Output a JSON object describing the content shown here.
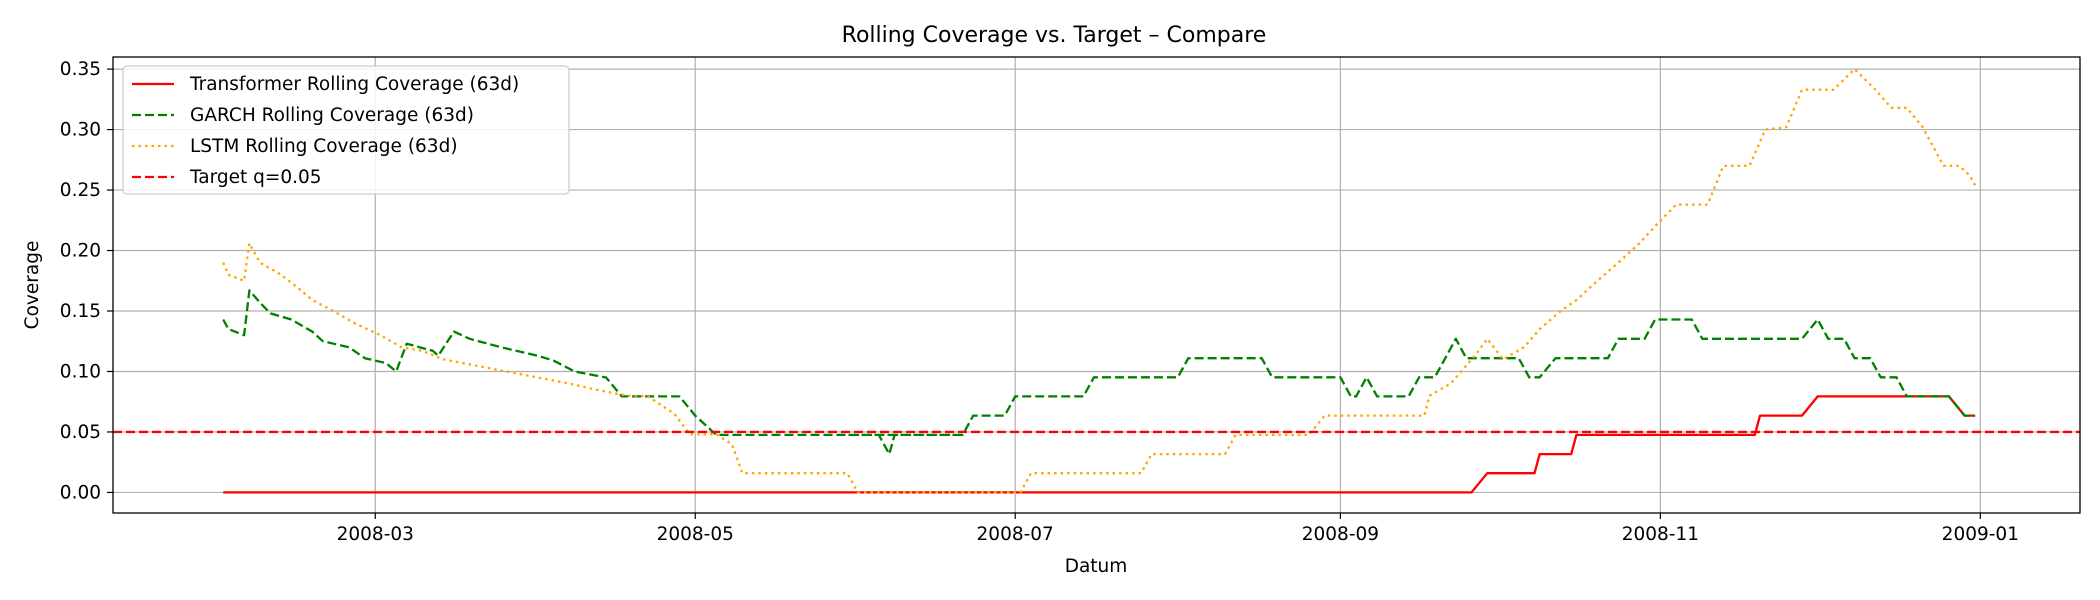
{
  "chart_data": {
    "type": "line",
    "title": "Rolling Coverage vs. Target – Compare",
    "xlabel": "Datum",
    "ylabel": "Coverage",
    "xlim": [
      "2008-01-11",
      "2009-01-20"
    ],
    "ylim": [
      -0.017,
      0.36
    ],
    "grid": true,
    "legend_position": "top-left",
    "x_ticks": [
      "2008-03",
      "2008-05",
      "2008-07",
      "2008-09",
      "2008-11",
      "2009-01"
    ],
    "x_tick_dates": [
      "2008-03-01",
      "2008-05-01",
      "2008-07-01",
      "2008-09-01",
      "2008-11-01",
      "2009-01-01"
    ],
    "y_ticks": [
      "0.00",
      "0.05",
      "0.10",
      "0.15",
      "0.20",
      "0.25",
      "0.30",
      "0.35"
    ],
    "y_tick_values": [
      0,
      0.05,
      0.1,
      0.15,
      0.2,
      0.25,
      0.3,
      0.35
    ],
    "target": {
      "name": "Target q=0.05",
      "value": 0.05,
      "color": "#ff0000",
      "style": "dashed"
    },
    "series": [
      {
        "name": "Transformer Rolling Coverage (63d)",
        "color": "#ff0000",
        "style": "solid",
        "points": [
          [
            "2008-02-01",
            0.0
          ],
          [
            "2008-09-26",
            0.0
          ],
          [
            "2008-09-29",
            0.0159
          ],
          [
            "2008-10-08",
            0.0159
          ],
          [
            "2008-10-09",
            0.0317
          ],
          [
            "2008-10-15",
            0.0317
          ],
          [
            "2008-10-16",
            0.0476
          ],
          [
            "2008-11-19",
            0.0476
          ],
          [
            "2008-11-20",
            0.0635
          ],
          [
            "2008-11-28",
            0.0635
          ],
          [
            "2008-12-01",
            0.0794
          ],
          [
            "2008-12-26",
            0.0794
          ],
          [
            "2008-12-29",
            0.0635
          ],
          [
            "2008-12-31",
            0.0635
          ]
        ]
      },
      {
        "name": "GARCH Rolling Coverage (63d)",
        "color": "#008000",
        "style": "dashed",
        "points": [
          [
            "2008-02-01",
            0.143
          ],
          [
            "2008-02-02",
            0.135
          ],
          [
            "2008-02-05",
            0.13
          ],
          [
            "2008-02-06",
            0.167
          ],
          [
            "2008-02-08",
            0.157
          ],
          [
            "2008-02-10",
            0.148
          ],
          [
            "2008-02-14",
            0.143
          ],
          [
            "2008-02-18",
            0.133
          ],
          [
            "2008-02-20",
            0.125
          ],
          [
            "2008-02-25",
            0.12
          ],
          [
            "2008-02-28",
            0.111
          ],
          [
            "2008-03-03",
            0.107
          ],
          [
            "2008-03-05",
            0.1
          ],
          [
            "2008-03-07",
            0.123
          ],
          [
            "2008-03-12",
            0.117
          ],
          [
            "2008-03-13",
            0.113
          ],
          [
            "2008-03-16",
            0.133
          ],
          [
            "2008-03-19",
            0.127
          ],
          [
            "2008-03-25",
            0.12
          ],
          [
            "2008-04-01",
            0.113
          ],
          [
            "2008-04-04",
            0.109
          ],
          [
            "2008-04-08",
            0.1
          ],
          [
            "2008-04-14",
            0.095
          ],
          [
            "2008-04-17",
            0.0794
          ],
          [
            "2008-04-28",
            0.0794
          ],
          [
            "2008-05-01",
            0.0635
          ],
          [
            "2008-05-05",
            0.0476
          ],
          [
            "2008-05-12",
            0.0476
          ],
          [
            "2008-05-16",
            0.0476
          ],
          [
            "2008-05-26",
            0.0476
          ],
          [
            "2008-05-28",
            0.0476
          ],
          [
            "2008-06-02",
            0.0476
          ],
          [
            "2008-06-05",
            0.0476
          ],
          [
            "2008-06-20",
            0.0476
          ],
          [
            "2008-05-30",
            0.0476
          ],
          [
            "2008-06-05",
            0.0476
          ],
          [
            "2008-06-07",
            0.0317
          ],
          [
            "2008-06-08",
            0.0476
          ],
          [
            "2008-06-21",
            0.0476
          ],
          [
            "2008-06-23",
            0.0635
          ],
          [
            "2008-06-29",
            0.0635
          ],
          [
            "2008-07-01",
            0.0794
          ],
          [
            "2008-07-14",
            0.0794
          ],
          [
            "2008-07-16",
            0.0952
          ],
          [
            "2008-08-01",
            0.0952
          ],
          [
            "2008-08-03",
            0.111
          ],
          [
            "2008-08-17",
            0.111
          ],
          [
            "2008-08-19",
            0.0952
          ],
          [
            "2008-09-01",
            0.0952
          ],
          [
            "2008-09-03",
            0.0794
          ],
          [
            "2008-09-04",
            0.0794
          ],
          [
            "2008-09-06",
            0.0952
          ],
          [
            "2008-09-08",
            0.0794
          ],
          [
            "2008-09-14",
            0.0794
          ],
          [
            "2008-09-16",
            0.0952
          ],
          [
            "2008-09-19",
            0.0952
          ],
          [
            "2008-09-21",
            0.111
          ],
          [
            "2008-09-23",
            0.127
          ],
          [
            "2008-09-25",
            0.111
          ],
          [
            "2008-10-05",
            0.111
          ],
          [
            "2008-10-07",
            0.0952
          ],
          [
            "2008-10-09",
            0.0952
          ],
          [
            "2008-10-12",
            0.111
          ],
          [
            "2008-10-22",
            0.111
          ],
          [
            "2008-10-24",
            0.127
          ],
          [
            "2008-10-29",
            0.127
          ],
          [
            "2008-10-31",
            0.143
          ],
          [
            "2008-11-07",
            0.143
          ],
          [
            "2008-11-09",
            0.127
          ],
          [
            "2008-11-28",
            0.127
          ],
          [
            "2008-12-01",
            0.143
          ],
          [
            "2008-12-03",
            0.127
          ],
          [
            "2008-12-06",
            0.127
          ],
          [
            "2008-12-08",
            0.111
          ],
          [
            "2008-12-11",
            0.111
          ],
          [
            "2008-12-13",
            0.0952
          ],
          [
            "2008-12-16",
            0.0952
          ],
          [
            "2008-12-18",
            0.0794
          ],
          [
            "2008-12-26",
            0.0794
          ],
          [
            "2008-12-29",
            0.0635
          ],
          [
            "2008-12-31",
            0.0635
          ]
        ]
      },
      {
        "name": "LSTM Rolling Coverage (63d)",
        "color": "#ffa500",
        "style": "dotted",
        "points": [
          [
            "2008-02-01",
            0.19
          ],
          [
            "2008-02-02",
            0.18
          ],
          [
            "2008-02-05",
            0.175
          ],
          [
            "2008-02-06",
            0.206
          ],
          [
            "2008-02-08",
            0.19
          ],
          [
            "2008-02-12",
            0.18
          ],
          [
            "2008-02-15",
            0.17
          ],
          [
            "2008-02-18",
            0.159
          ],
          [
            "2008-02-22",
            0.15
          ],
          [
            "2008-02-26",
            0.14
          ],
          [
            "2008-03-02",
            0.13
          ],
          [
            "2008-03-06",
            0.12
          ],
          [
            "2008-03-10",
            0.117
          ],
          [
            "2008-03-14",
            0.11
          ],
          [
            "2008-03-20",
            0.105
          ],
          [
            "2008-03-26",
            0.1
          ],
          [
            "2008-04-01",
            0.095
          ],
          [
            "2008-04-07",
            0.09
          ],
          [
            "2008-04-12",
            0.085
          ],
          [
            "2008-04-18",
            0.08
          ],
          [
            "2008-04-22",
            0.0794
          ],
          [
            "2008-04-27",
            0.065
          ],
          [
            "2008-04-30",
            0.048
          ],
          [
            "2008-05-05",
            0.048
          ],
          [
            "2008-05-08",
            0.04
          ],
          [
            "2008-05-10",
            0.0159
          ],
          [
            "2008-05-22",
            0.0159
          ],
          [
            "2008-05-27",
            0.0159
          ],
          [
            "2008-05-30",
            0.0159
          ],
          [
            "2008-06-01",
            0.0
          ],
          [
            "2008-07-02",
            0.0
          ],
          [
            "2008-07-04",
            0.0159
          ],
          [
            "2008-07-07",
            0.0159
          ],
          [
            "2008-07-25",
            0.0159
          ],
          [
            "2008-07-27",
            0.0317
          ],
          [
            "2008-08-10",
            0.0317
          ],
          [
            "2008-08-12",
            0.0476
          ],
          [
            "2008-08-19",
            0.0476
          ],
          [
            "2008-08-22",
            0.0476
          ],
          [
            "2008-08-26",
            0.0476
          ],
          [
            "2008-08-29",
            0.0635
          ],
          [
            "2008-09-15",
            0.0635
          ],
          [
            "2008-09-17",
            0.0635
          ],
          [
            "2008-09-18",
            0.08
          ],
          [
            "2008-09-22",
            0.09
          ],
          [
            "2008-09-24",
            0.1
          ],
          [
            "2008-09-27",
            0.115
          ],
          [
            "2008-09-29",
            0.127
          ],
          [
            "2008-10-02",
            0.11
          ],
          [
            "2008-10-06",
            0.12
          ],
          [
            "2008-10-09",
            0.135
          ],
          [
            "2008-10-13",
            0.15
          ],
          [
            "2008-10-16",
            0.159
          ],
          [
            "2008-10-20",
            0.175
          ],
          [
            "2008-10-24",
            0.19
          ],
          [
            "2008-10-28",
            0.206
          ],
          [
            "2008-10-31",
            0.22
          ],
          [
            "2008-11-04",
            0.238
          ],
          [
            "2008-11-10",
            0.238
          ],
          [
            "2008-11-13",
            0.27
          ],
          [
            "2008-11-18",
            0.27
          ],
          [
            "2008-11-21",
            0.3
          ],
          [
            "2008-11-25",
            0.302
          ],
          [
            "2008-11-28",
            0.333
          ],
          [
            "2008-12-01",
            0.333
          ],
          [
            "2008-12-04",
            0.333
          ],
          [
            "2008-12-08",
            0.35
          ],
          [
            "2008-12-12",
            0.333
          ],
          [
            "2008-12-15",
            0.318
          ],
          [
            "2008-12-18",
            0.318
          ],
          [
            "2008-12-21",
            0.302
          ],
          [
            "2008-12-23",
            0.286
          ],
          [
            "2008-12-25",
            0.27
          ],
          [
            "2008-12-28",
            0.27
          ],
          [
            "2008-12-30",
            0.262
          ],
          [
            "2008-12-31",
            0.254
          ]
        ]
      }
    ]
  }
}
